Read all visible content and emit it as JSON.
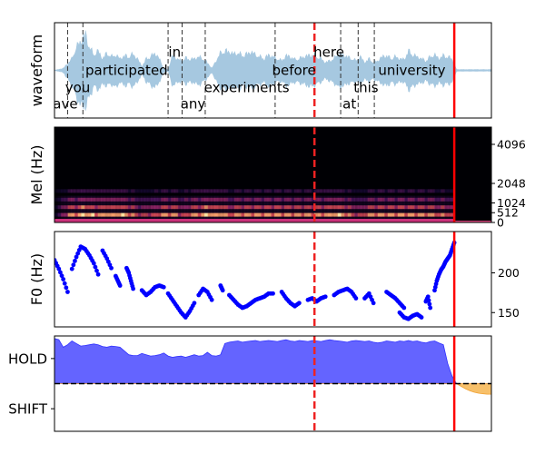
{
  "chart_data": [
    {
      "panel": "waveform",
      "type": "area",
      "ylabel": "waveform",
      "x_range": [
        0,
        1
      ],
      "y_range": [
        -1,
        1
      ],
      "series_color": "#a6c8e0",
      "envelope": {
        "x": [
          0.0,
          0.02,
          0.04,
          0.05,
          0.06,
          0.07,
          0.08,
          0.09,
          0.1,
          0.11,
          0.12,
          0.13,
          0.14,
          0.15,
          0.16,
          0.17,
          0.18,
          0.19,
          0.2,
          0.21,
          0.22,
          0.23,
          0.24,
          0.25,
          0.26,
          0.27,
          0.28,
          0.29,
          0.3,
          0.31,
          0.32,
          0.33,
          0.34,
          0.35,
          0.36,
          0.37,
          0.38,
          0.39,
          0.4,
          0.41,
          0.42,
          0.43,
          0.44,
          0.45,
          0.46,
          0.47,
          0.48,
          0.49,
          0.5,
          0.51,
          0.52,
          0.53,
          0.54,
          0.55,
          0.56,
          0.57,
          0.58,
          0.59,
          0.6,
          0.61,
          0.62,
          0.63,
          0.64,
          0.65,
          0.66,
          0.67,
          0.68,
          0.69,
          0.7,
          0.71,
          0.72,
          0.73,
          0.74,
          0.75,
          0.76,
          0.77,
          0.78,
          0.79,
          0.8,
          0.81,
          0.82,
          0.83,
          0.84,
          0.85,
          0.86,
          0.87,
          0.88,
          0.89,
          0.9,
          0.91,
          0.92,
          0.93,
          0.94,
          0.95,
          0.96,
          0.97,
          0.98,
          0.99,
          1.0
        ],
        "upper": [
          0.0,
          0.05,
          0.3,
          0.6,
          0.75,
          0.95,
          0.6,
          0.4,
          0.5,
          0.3,
          0.45,
          0.35,
          0.4,
          0.3,
          0.38,
          0.35,
          0.42,
          0.3,
          0.1,
          0.3,
          0.35,
          0.45,
          0.3,
          0.05,
          0.02,
          0.38,
          0.3,
          0.25,
          0.32,
          0.28,
          0.3,
          0.35,
          0.3,
          0.2,
          0.05,
          0.25,
          0.45,
          0.5,
          0.48,
          0.42,
          0.45,
          0.38,
          0.42,
          0.48,
          0.4,
          0.35,
          0.3,
          0.4,
          0.35,
          0.3,
          0.25,
          0.38,
          0.35,
          0.28,
          0.3,
          0.35,
          0.38,
          0.4,
          0.35,
          0.3,
          0.2,
          0.25,
          0.3,
          0.45,
          0.4,
          0.35,
          0.3,
          0.25,
          0.35,
          0.2,
          0.3,
          0.2,
          0.25,
          0.35,
          0.38,
          0.3,
          0.35,
          0.3,
          0.28,
          0.5,
          0.4,
          0.35,
          0.3,
          0.25,
          0.35,
          0.4,
          0.3,
          0.38,
          0.35,
          0.3,
          0.02,
          0.02,
          0.02,
          0.02,
          0.02,
          0.02,
          0.02,
          0.02,
          0.02
        ],
        "lower": [
          0.0,
          -0.05,
          -0.4,
          -0.7,
          -0.9,
          -0.95,
          -0.7,
          -0.4,
          -0.5,
          -0.35,
          -0.4,
          -0.35,
          -0.45,
          -0.3,
          -0.4,
          -0.35,
          -0.42,
          -0.3,
          -0.1,
          -0.3,
          -0.38,
          -0.45,
          -0.3,
          -0.05,
          -0.02,
          -0.4,
          -0.32,
          -0.28,
          -0.35,
          -0.3,
          -0.32,
          -0.38,
          -0.3,
          -0.2,
          -0.05,
          -0.28,
          -0.45,
          -0.5,
          -0.45,
          -0.42,
          -0.48,
          -0.4,
          -0.42,
          -0.45,
          -0.4,
          -0.35,
          -0.32,
          -0.42,
          -0.35,
          -0.3,
          -0.28,
          -0.4,
          -0.35,
          -0.3,
          -0.32,
          -0.35,
          -0.4,
          -0.42,
          -0.35,
          -0.3,
          -0.2,
          -0.28,
          -0.32,
          -0.45,
          -0.4,
          -0.35,
          -0.32,
          -0.28,
          -0.35,
          -0.22,
          -0.3,
          -0.22,
          -0.28,
          -0.35,
          -0.4,
          -0.32,
          -0.35,
          -0.3,
          -0.3,
          -0.5,
          -0.42,
          -0.35,
          -0.32,
          -0.28,
          -0.35,
          -0.4,
          -0.32,
          -0.38,
          -0.35,
          -0.32,
          -0.02,
          -0.02,
          -0.02,
          -0.02,
          -0.02,
          -0.02,
          -0.02,
          -0.02,
          -0.02
        ]
      },
      "words": [
        {
          "text": "have",
          "x": 0.015,
          "level": 0
        },
        {
          "text": "you",
          "x": 0.053,
          "level": 1
        },
        {
          "text": "participated",
          "x": 0.165,
          "level": 2
        },
        {
          "text": "in",
          "x": 0.275,
          "level": 3
        },
        {
          "text": "any",
          "x": 0.317,
          "level": 0
        },
        {
          "text": "experiments",
          "x": 0.44,
          "level": 1
        },
        {
          "text": "before",
          "x": 0.548,
          "level": 2
        },
        {
          "text": "here",
          "x": 0.628,
          "level": 3
        },
        {
          "text": "at",
          "x": 0.675,
          "level": 0
        },
        {
          "text": "this",
          "x": 0.713,
          "level": 1
        },
        {
          "text": "university",
          "x": 0.818,
          "level": 2
        }
      ],
      "word_boundaries": [
        0.03,
        0.065,
        0.26,
        0.292,
        0.345,
        0.505,
        0.655,
        0.695,
        0.732
      ],
      "current_time": 0.595,
      "end_time": 0.915
    },
    {
      "panel": "mel",
      "type": "heatmap",
      "ylabel": "Mel (Hz)",
      "yticks": [
        "0",
        "512",
        "1024",
        "2048",
        "4096"
      ],
      "ytick_values": [
        0,
        512,
        1024,
        2048,
        4096
      ],
      "ylim": [
        0,
        5000
      ],
      "current_time": 0.595,
      "end_time": 0.915,
      "bands": [
        {
          "rel_y": 0.08,
          "strength": 0.95
        },
        {
          "rel_y": 0.16,
          "strength": 0.75
        },
        {
          "rel_y": 0.24,
          "strength": 0.55
        },
        {
          "rel_y": 0.33,
          "strength": 0.35
        }
      ],
      "energy_x": [
        0.0,
        0.03,
        0.065,
        0.1,
        0.16,
        0.2,
        0.26,
        0.292,
        0.345,
        0.4,
        0.45,
        0.505,
        0.56,
        0.6,
        0.655,
        0.695,
        0.732,
        0.8,
        0.86,
        0.915
      ],
      "energy": [
        0.2,
        0.8,
        1.0,
        0.85,
        0.9,
        0.6,
        0.9,
        0.7,
        0.95,
        0.8,
        0.85,
        0.9,
        0.8,
        0.85,
        0.9,
        0.6,
        0.85,
        0.9,
        0.8,
        0.7
      ]
    },
    {
      "panel": "f0",
      "type": "scatter",
      "ylabel": "F0 (Hz)",
      "yticks": [
        "150",
        "200"
      ],
      "ytick_values": [
        150,
        200
      ],
      "ylim": [
        132,
        252
      ],
      "marker_color": "#0000ff",
      "current_time": 0.595,
      "end_time": 0.915,
      "segments": [
        {
          "x": [
            0.0,
            0.01,
            0.02,
            0.03
          ],
          "y": [
            216,
            205,
            192,
            176
          ]
        },
        {
          "x": [
            0.04,
            0.05,
            0.06,
            0.07,
            0.08,
            0.09,
            0.1
          ],
          "y": [
            205,
            220,
            233,
            230,
            222,
            212,
            198
          ]
        },
        {
          "x": [
            0.11,
            0.12,
            0.13
          ],
          "y": [
            228,
            218,
            206
          ]
        },
        {
          "x": [
            0.14,
            0.145,
            0.15
          ],
          "y": [
            196,
            190,
            184
          ]
        },
        {
          "x": [
            0.165,
            0.17,
            0.175,
            0.18
          ],
          "y": [
            206,
            200,
            190,
            180
          ]
        },
        {
          "x": [
            0.2,
            0.21,
            0.22,
            0.23,
            0.24,
            0.25
          ],
          "y": [
            178,
            172,
            176,
            182,
            184,
            182
          ]
        },
        {
          "x": [
            0.26,
            0.27,
            0.28,
            0.29,
            0.3,
            0.31,
            0.32
          ],
          "y": [
            174,
            166,
            158,
            150,
            144,
            152,
            162
          ]
        },
        {
          "x": [
            0.33,
            0.34,
            0.35,
            0.36
          ],
          "y": [
            172,
            180,
            176,
            166
          ]
        },
        {
          "x": [
            0.38,
            0.385
          ],
          "y": [
            184,
            178
          ]
        },
        {
          "x": [
            0.4,
            0.41,
            0.42,
            0.43,
            0.44,
            0.45,
            0.46,
            0.47,
            0.48,
            0.49,
            0.5
          ],
          "y": [
            172,
            166,
            160,
            156,
            158,
            162,
            166,
            168,
            170,
            174,
            174
          ]
        },
        {
          "x": [
            0.52,
            0.53,
            0.54,
            0.55,
            0.56
          ],
          "y": [
            176,
            168,
            162,
            158,
            162
          ]
        },
        {
          "x": [
            0.58,
            0.59,
            0.6,
            0.61,
            0.62
          ],
          "y": [
            166,
            168,
            164,
            168,
            170
          ]
        },
        {
          "x": [
            0.64,
            0.65,
            0.66,
            0.67,
            0.68,
            0.69
          ],
          "y": [
            172,
            176,
            178,
            180,
            176,
            168
          ]
        },
        {
          "x": [
            0.71,
            0.72,
            0.73
          ],
          "y": [
            168,
            174,
            162
          ]
        },
        {
          "x": [
            0.76,
            0.77,
            0.78,
            0.79,
            0.8
          ],
          "y": [
            176,
            172,
            168,
            162,
            156
          ]
        },
        {
          "x": [
            0.79,
            0.8,
            0.81,
            0.82,
            0.83,
            0.84
          ],
          "y": [
            150,
            144,
            142,
            146,
            148,
            144
          ]
        },
        {
          "x": [
            0.85,
            0.855,
            0.86
          ],
          "y": [
            164,
            170,
            156
          ]
        },
        {
          "x": [
            0.87,
            0.875,
            0.88,
            0.885,
            0.89,
            0.895,
            0.9,
            0.905,
            0.91,
            0.915
          ],
          "y": [
            178,
            190,
            198,
            204,
            208,
            214,
            218,
            222,
            230,
            238
          ]
        }
      ]
    },
    {
      "panel": "turn",
      "type": "area",
      "yticks": [
        "HOLD",
        "SHIFT"
      ],
      "ytick_values": [
        1,
        -1
      ],
      "ylim": [
        -1.9,
        1.9
      ],
      "hold_color": "#6464ff",
      "shift_color": "#f7c06a",
      "threshold": 0,
      "current_time": 0.595,
      "end_time": 0.915,
      "x": [
        0.0,
        0.01,
        0.02,
        0.03,
        0.04,
        0.05,
        0.06,
        0.07,
        0.08,
        0.09,
        0.1,
        0.11,
        0.12,
        0.13,
        0.14,
        0.15,
        0.16,
        0.17,
        0.18,
        0.19,
        0.2,
        0.21,
        0.22,
        0.23,
        0.24,
        0.25,
        0.26,
        0.27,
        0.28,
        0.29,
        0.3,
        0.31,
        0.32,
        0.33,
        0.34,
        0.35,
        0.36,
        0.37,
        0.38,
        0.39,
        0.4,
        0.41,
        0.42,
        0.43,
        0.44,
        0.45,
        0.46,
        0.47,
        0.48,
        0.49,
        0.5,
        0.51,
        0.52,
        0.53,
        0.54,
        0.55,
        0.56,
        0.57,
        0.58,
        0.59,
        0.6,
        0.61,
        0.62,
        0.63,
        0.64,
        0.65,
        0.66,
        0.67,
        0.68,
        0.69,
        0.7,
        0.71,
        0.72,
        0.73,
        0.74,
        0.75,
        0.76,
        0.77,
        0.78,
        0.79,
        0.8,
        0.81,
        0.82,
        0.83,
        0.84,
        0.85,
        0.86,
        0.87,
        0.88,
        0.89,
        0.9,
        0.91,
        0.92,
        0.93,
        0.94,
        0.95,
        0.96,
        0.97,
        0.98,
        0.99,
        1.0
      ],
      "y": [
        1.8,
        1.75,
        1.45,
        1.55,
        1.7,
        1.6,
        1.5,
        1.52,
        1.55,
        1.58,
        1.55,
        1.48,
        1.45,
        1.5,
        1.48,
        1.45,
        1.3,
        1.15,
        1.12,
        1.12,
        1.2,
        1.15,
        1.1,
        1.12,
        1.15,
        1.22,
        1.1,
        1.05,
        1.08,
        1.1,
        1.05,
        1.1,
        1.15,
        1.1,
        1.12,
        1.25,
        1.12,
        1.1,
        1.15,
        1.6,
        1.65,
        1.68,
        1.7,
        1.65,
        1.68,
        1.7,
        1.72,
        1.68,
        1.7,
        1.72,
        1.7,
        1.68,
        1.72,
        1.75,
        1.7,
        1.68,
        1.72,
        1.7,
        1.68,
        1.72,
        1.7,
        1.68,
        1.72,
        1.75,
        1.72,
        1.7,
        1.68,
        1.65,
        1.7,
        1.72,
        1.7,
        1.68,
        1.7,
        1.65,
        1.62,
        1.65,
        1.7,
        1.68,
        1.65,
        1.7,
        1.68,
        1.72,
        1.68,
        1.7,
        1.65,
        1.62,
        1.68,
        1.7,
        1.62,
        1.55,
        0.8,
        0.3,
        0.0,
        -0.1,
        -0.2,
        -0.28,
        -0.34,
        -0.38,
        -0.4,
        -0.42,
        -0.42
      ]
    }
  ]
}
